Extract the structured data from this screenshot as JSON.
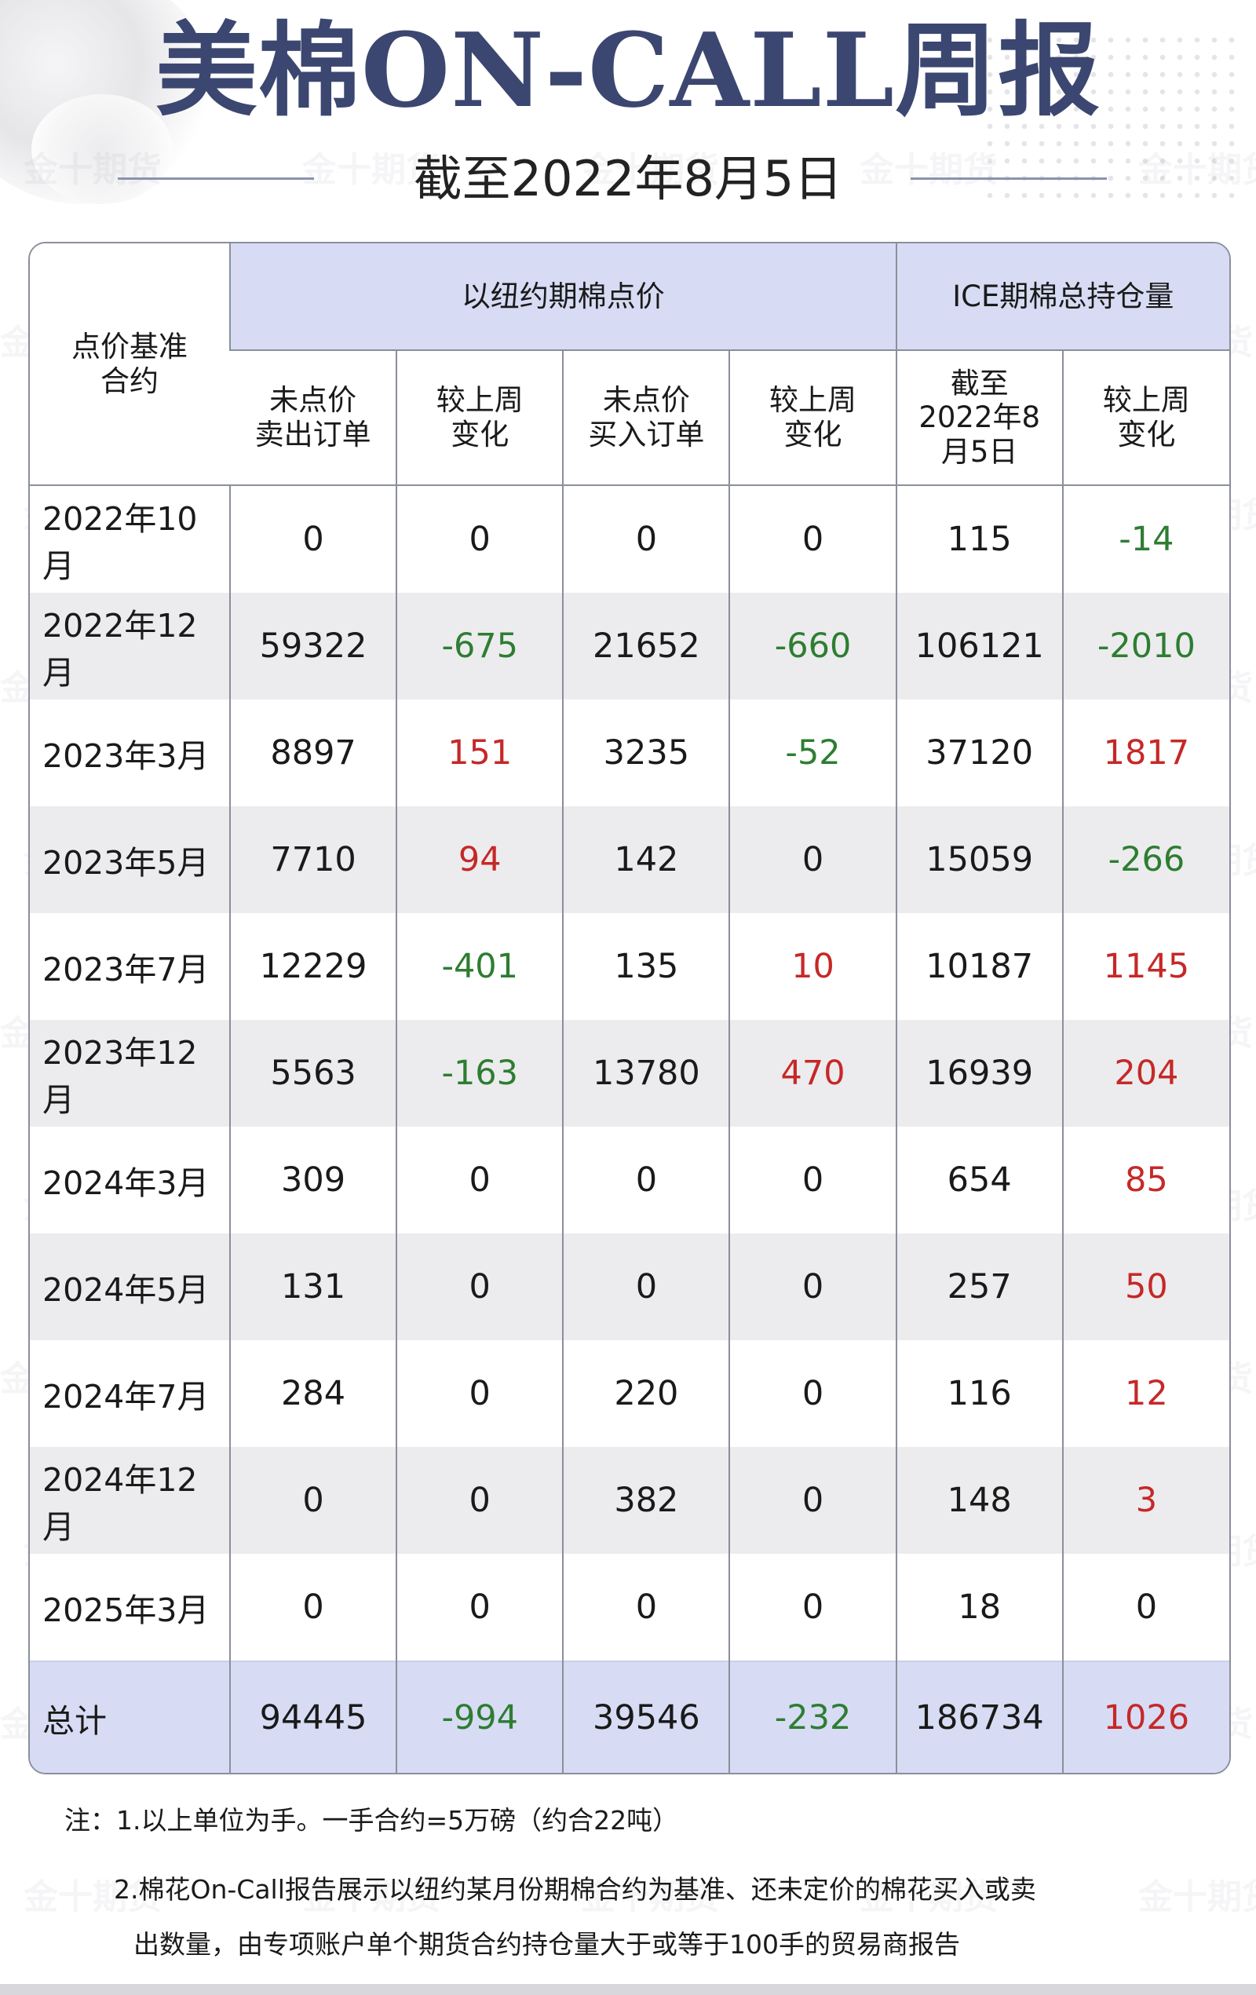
{
  "header": {
    "title": "美棉ON-CALL周报",
    "subtitle": "截至2022年8月5日"
  },
  "table": {
    "corner_label": "点价基准\n合约",
    "group_nyc": "以纽约期棉点价",
    "group_ice": "ICE期棉总持仓量",
    "columns": [
      "未点价\n卖出订单",
      "较上周\n变化",
      "未点价\n买入订单",
      "较上周\n变化",
      "截至\n2022年8\n月5日",
      "较上周\n变化"
    ],
    "rows": [
      {
        "contract": "2022年10月",
        "sell": "0",
        "sell_chg": "0",
        "buy": "0",
        "buy_chg": "0",
        "oi": "115",
        "oi_chg": "-14"
      },
      {
        "contract": "2022年12月",
        "sell": "59322",
        "sell_chg": "-675",
        "buy": "21652",
        "buy_chg": "-660",
        "oi": "106121",
        "oi_chg": "-2010"
      },
      {
        "contract": "2023年3月",
        "sell": "8897",
        "sell_chg": "151",
        "buy": "3235",
        "buy_chg": "-52",
        "oi": "37120",
        "oi_chg": "1817"
      },
      {
        "contract": "2023年5月",
        "sell": "7710",
        "sell_chg": "94",
        "buy": "142",
        "buy_chg": "0",
        "oi": "15059",
        "oi_chg": "-266"
      },
      {
        "contract": "2023年7月",
        "sell": "12229",
        "sell_chg": "-401",
        "buy": "135",
        "buy_chg": "10",
        "oi": "10187",
        "oi_chg": "1145"
      },
      {
        "contract": "2023年12月",
        "sell": "5563",
        "sell_chg": "-163",
        "buy": "13780",
        "buy_chg": "470",
        "oi": "16939",
        "oi_chg": "204"
      },
      {
        "contract": "2024年3月",
        "sell": "309",
        "sell_chg": "0",
        "buy": "0",
        "buy_chg": "0",
        "oi": "654",
        "oi_chg": "85"
      },
      {
        "contract": "2024年5月",
        "sell": "131",
        "sell_chg": "0",
        "buy": "0",
        "buy_chg": "0",
        "oi": "257",
        "oi_chg": "50"
      },
      {
        "contract": "2024年7月",
        "sell": "284",
        "sell_chg": "0",
        "buy": "220",
        "buy_chg": "0",
        "oi": "116",
        "oi_chg": "12"
      },
      {
        "contract": "2024年12月",
        "sell": "0",
        "sell_chg": "0",
        "buy": "382",
        "buy_chg": "0",
        "oi": "148",
        "oi_chg": "3"
      },
      {
        "contract": "2025年3月",
        "sell": "0",
        "sell_chg": "0",
        "buy": "0",
        "buy_chg": "0",
        "oi": "18",
        "oi_chg": "0"
      }
    ],
    "total": {
      "contract": "总计",
      "sell": "94445",
      "sell_chg": "-994",
      "buy": "39546",
      "buy_chg": "-232",
      "oi": "186734",
      "oi_chg": "1026"
    }
  },
  "notes": {
    "line1": "注：1.以上单位为手。一手合约=5万磅（约合22吨）",
    "line2": "2.棉花On-Call报告展示以纽约某月份期棉合约为基准、还未定价的棉花买入或卖",
    "line3": "出数量，由专项账户单个期货合约持仓量大于或等于100手的贸易商报告"
  },
  "watermark": "金十期货",
  "colors": {
    "title": "#3b4770",
    "header_fill": "#d7dcf4",
    "alt_row": "#ececee",
    "negative": "#2e7d32",
    "positive": "#c62828",
    "border": "#8a8f9c"
  }
}
